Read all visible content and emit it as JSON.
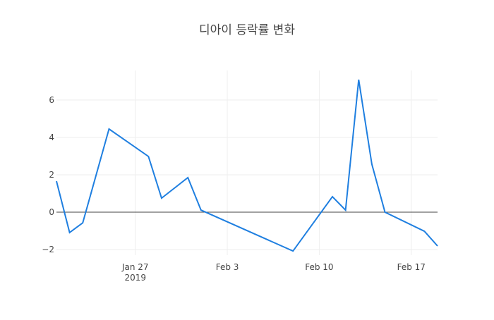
{
  "chart_data": {
    "type": "line",
    "title": "디아이 등락률 변화",
    "x": [
      "2019-01-21",
      "2019-01-22",
      "2019-01-23",
      "2019-01-25",
      "2019-01-28",
      "2019-01-29",
      "2019-01-31",
      "2019-02-01",
      "2019-02-08",
      "2019-02-11",
      "2019-02-12",
      "2019-02-13",
      "2019-02-14",
      "2019-02-15",
      "2019-02-18",
      "2019-02-19"
    ],
    "series": [
      {
        "color": "#1f7fe0",
        "values": [
          1.66,
          -1.09,
          -0.57,
          4.45,
          2.98,
          0.75,
          1.85,
          0.11,
          -2.08,
          0.83,
          0.11,
          7.09,
          2.57,
          0,
          -1.02,
          -1.81
        ]
      }
    ],
    "xlim": [
      "2019-01-21",
      "2019-02-19"
    ],
    "xticks": [
      {
        "value": "2019-01-27",
        "label": "Jan 27\n2019"
      },
      {
        "value": "2019-02-03",
        "label": "Feb 3"
      },
      {
        "value": "2019-02-10",
        "label": "Feb 10"
      },
      {
        "value": "2019-02-17",
        "label": "Feb 17"
      }
    ],
    "ylim": [
      -2.3,
      7.58
    ],
    "yticks": [
      {
        "value": -2,
        "label": "−2"
      },
      0,
      2,
      4,
      6
    ],
    "grid": true,
    "zeroline": true
  }
}
